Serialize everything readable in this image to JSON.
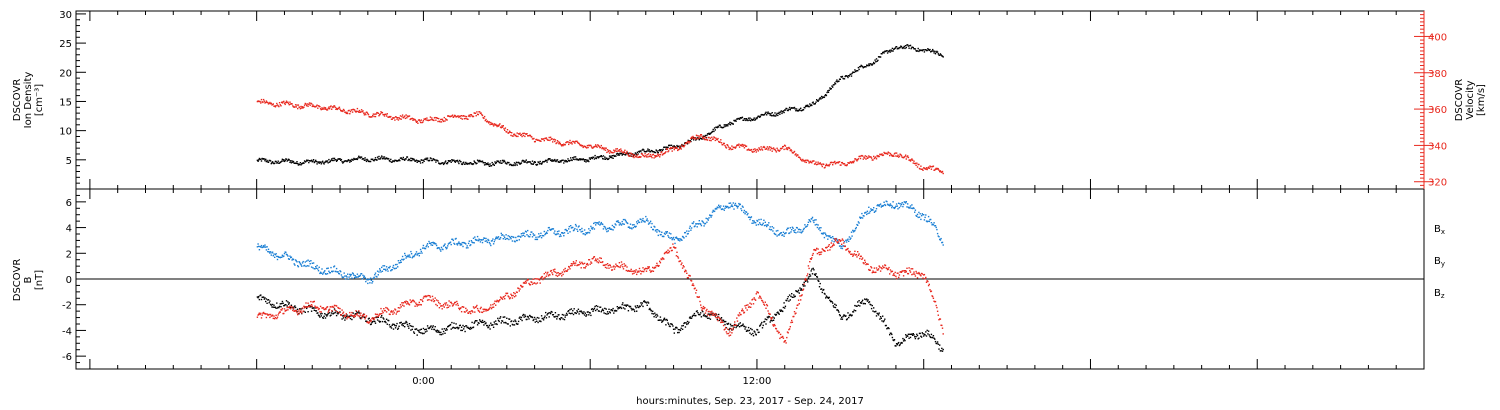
{
  "chart_data": [
    {
      "type": "scatter",
      "panel": "top",
      "ylabel_left": [
        "DSCOVR",
        "Ion Density",
        "[cm⁻³]"
      ],
      "ylabel_right": [
        "DSCOVR",
        "Velocity",
        "[km/s]"
      ],
      "ylim_left": [
        0,
        30.5
      ],
      "ylim_right": [
        316,
        414
      ],
      "yticks_left": [
        "5",
        "10",
        "15",
        "20",
        "25",
        "30"
      ],
      "yticks_right": [
        "320",
        "340",
        "360",
        "380",
        "400"
      ],
      "series": [
        {
          "name": "Ion Density",
          "axis": "left",
          "color": "#000000",
          "x": [
            -6,
            -4,
            -2,
            0,
            2,
            4,
            6,
            8,
            9,
            10,
            11,
            12,
            13,
            14,
            15,
            16,
            17,
            18,
            18.7
          ],
          "y": [
            4.9,
            4.7,
            5.3,
            5.0,
            4.5,
            4.7,
            5.3,
            6.5,
            7.2,
            9.0,
            11.5,
            12.5,
            13.5,
            14.5,
            19.0,
            21.5,
            24.5,
            24.0,
            23.0
          ]
        },
        {
          "name": "Velocity",
          "axis": "right",
          "color": "#e8281e",
          "x": [
            -6,
            -4,
            -2,
            0,
            1,
            2,
            3,
            4,
            6,
            8,
            9,
            10,
            11,
            12,
            13,
            14,
            15,
            16,
            17,
            18,
            18.7
          ],
          "y": [
            364,
            362,
            358,
            354,
            356,
            357,
            348,
            344,
            340,
            334,
            338,
            346,
            340,
            338,
            339,
            330,
            330,
            334,
            336,
            328,
            326
          ]
        }
      ]
    },
    {
      "type": "scatter",
      "panel": "bottom",
      "ylabel": [
        "DSCOVR",
        "B",
        "[nT]"
      ],
      "ylim": [
        -7,
        7
      ],
      "yticks": [
        "-6",
        "-4",
        "-2",
        "0",
        "2",
        "4",
        "6"
      ],
      "legend": [
        "Bx",
        "By",
        "Bz"
      ],
      "legend_placement": "right",
      "series": [
        {
          "name": "Bx",
          "color": "#000000",
          "x": [
            -6,
            -4,
            -2,
            0,
            2,
            4,
            6,
            8,
            9,
            10,
            11,
            12,
            13,
            14,
            15,
            16,
            17,
            18,
            18.7
          ],
          "y": [
            -1.5,
            -2.5,
            -3.0,
            -4.0,
            -3.5,
            -3.0,
            -2.5,
            -2.0,
            -4.0,
            -2.5,
            -3.5,
            -4.0,
            -2.0,
            0.5,
            -3.0,
            -1.5,
            -5.0,
            -4.0,
            -5.5
          ]
        },
        {
          "name": "By",
          "color": "#1a7fd4",
          "x": [
            -6,
            -4,
            -2,
            0,
            2,
            4,
            6,
            8,
            9,
            10,
            11,
            12,
            13,
            14,
            15,
            16,
            17,
            18,
            18.7
          ],
          "y": [
            2.5,
            1.0,
            0.0,
            2.5,
            3.0,
            3.5,
            4.0,
            4.5,
            3.0,
            4.5,
            6.0,
            4.5,
            3.5,
            4.5,
            2.5,
            5.5,
            6.0,
            5.0,
            3.0
          ]
        },
        {
          "name": "Bz",
          "color": "#e8281e",
          "x": [
            -6,
            -4,
            -2,
            0,
            2,
            4,
            6,
            8,
            9,
            10,
            11,
            12,
            13,
            14,
            15,
            16,
            17,
            18,
            18.7
          ],
          "y": [
            -3.0,
            -2.0,
            -3.0,
            -1.5,
            -2.5,
            0.0,
            1.5,
            0.5,
            2.5,
            -2.0,
            -4.0,
            -1.0,
            -5.0,
            2.0,
            3.0,
            1.0,
            0.5,
            0.5,
            -4.0
          ]
        }
      ]
    }
  ],
  "x_axis": {
    "range_hours": [
      -12.5,
      36
    ],
    "tick_labels": [
      {
        "hour": 0,
        "label": "0:00"
      },
      {
        "hour": 12,
        "label": "12:00"
      }
    ],
    "label": "hours:minutes, Sep. 23, 2017 - Sep. 24, 2017"
  },
  "colors": {
    "black": "#000000",
    "red": "#e8281e",
    "blue": "#1a7fd4"
  }
}
